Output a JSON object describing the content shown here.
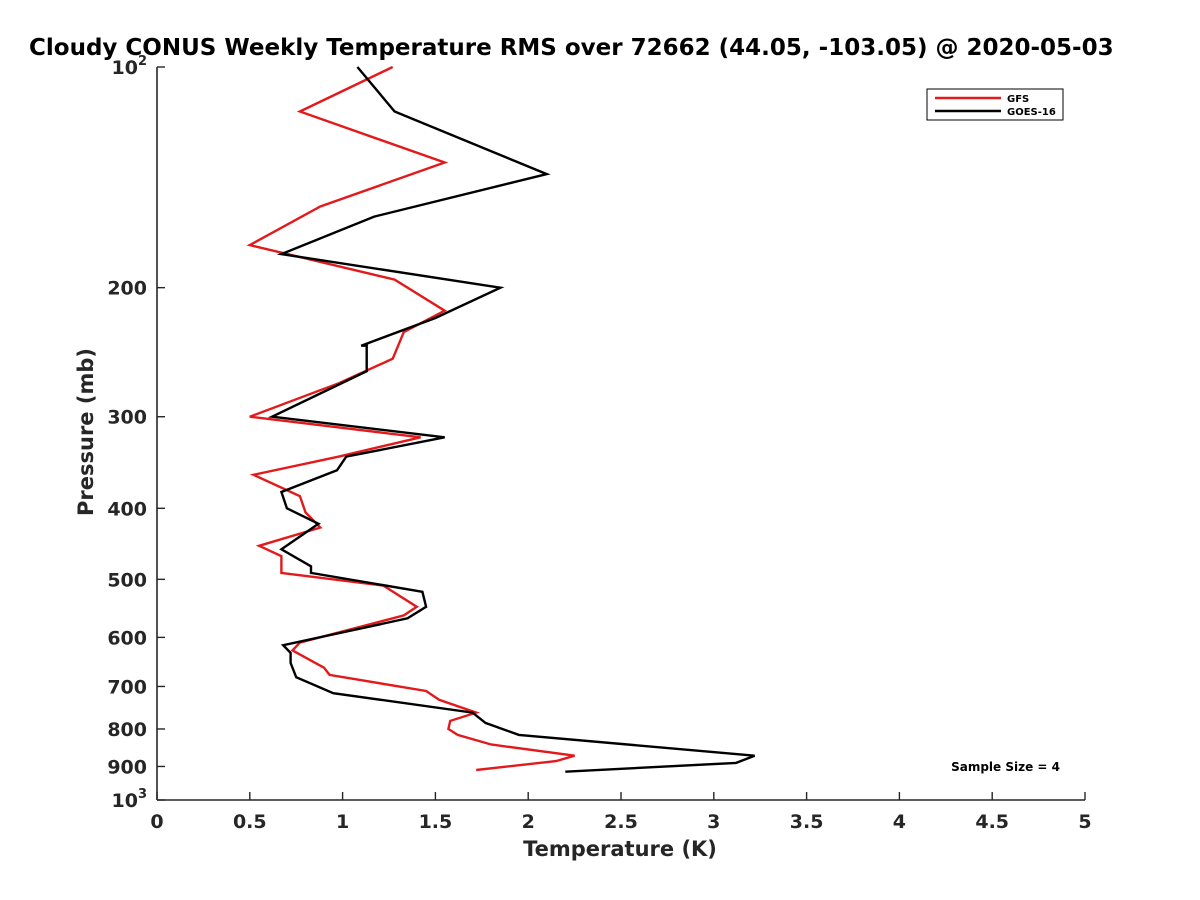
{
  "chart_data": {
    "type": "line",
    "title": "Cloudy CONUS Weekly Temperature RMS over 72662 (44.05, -103.05) @ 2020-05-03",
    "xlabel": "Temperature (K)",
    "ylabel": "Pressure (mb)",
    "xlim": [
      0,
      5
    ],
    "ylim": [
      100,
      1000
    ],
    "y_scale": "log",
    "y_reversed": true,
    "grid": false,
    "legend_position": "top-right",
    "x_ticks": [
      "0",
      "0.5",
      "1",
      "1.5",
      "2",
      "2.5",
      "3",
      "3.5",
      "4",
      "4.5",
      "5"
    ],
    "y_ticks": [
      {
        "value": 100,
        "base": "10",
        "exp": "2"
      },
      {
        "value": 200,
        "label": "200"
      },
      {
        "value": 300,
        "label": "300"
      },
      {
        "value": 400,
        "label": "400"
      },
      {
        "value": 500,
        "label": "500"
      },
      {
        "value": 600,
        "label": "600"
      },
      {
        "value": 700,
        "label": "700"
      },
      {
        "value": 800,
        "label": "800"
      },
      {
        "value": 900,
        "label": "900"
      },
      {
        "value": 1000,
        "base": "10",
        "exp": "3"
      }
    ],
    "annotation": "Sample Size = 4",
    "series": [
      {
        "name": "GFS",
        "color": "#e31a1c",
        "points": [
          [
            1.27,
            100
          ],
          [
            0.77,
            115
          ],
          [
            1.55,
            135
          ],
          [
            0.88,
            155
          ],
          [
            0.5,
            175
          ],
          [
            1.28,
            195
          ],
          [
            1.55,
            215
          ],
          [
            1.33,
            230
          ],
          [
            1.27,
            250
          ],
          [
            0.98,
            270
          ],
          [
            0.5,
            300
          ],
          [
            1.42,
            320
          ],
          [
            0.98,
            340
          ],
          [
            0.52,
            360
          ],
          [
            0.77,
            385
          ],
          [
            0.8,
            405
          ],
          [
            0.88,
            425
          ],
          [
            0.55,
            450
          ],
          [
            0.67,
            465
          ],
          [
            0.67,
            490
          ],
          [
            1.22,
            510
          ],
          [
            1.4,
            545
          ],
          [
            1.33,
            560
          ],
          [
            0.77,
            610
          ],
          [
            0.73,
            625
          ],
          [
            0.9,
            660
          ],
          [
            0.93,
            675
          ],
          [
            1.45,
            710
          ],
          [
            1.52,
            730
          ],
          [
            1.72,
            760
          ],
          [
            1.58,
            780
          ],
          [
            1.57,
            800
          ],
          [
            1.62,
            815
          ],
          [
            1.8,
            840
          ],
          [
            2.25,
            870
          ],
          [
            2.15,
            885
          ],
          [
            1.72,
            910
          ]
        ]
      },
      {
        "name": "GOES-16",
        "color": "#000000",
        "points": [
          [
            1.08,
            100
          ],
          [
            1.28,
            115
          ],
          [
            2.1,
            140
          ],
          [
            1.17,
            160
          ],
          [
            0.67,
            180
          ],
          [
            1.85,
            200
          ],
          [
            1.5,
            220
          ],
          [
            1.1,
            240
          ],
          [
            1.13,
            240
          ],
          [
            1.13,
            260
          ],
          [
            0.93,
            275
          ],
          [
            0.62,
            300
          ],
          [
            1.55,
            320
          ],
          [
            1.02,
            340
          ],
          [
            0.97,
            355
          ],
          [
            0.67,
            380
          ],
          [
            0.7,
            400
          ],
          [
            0.87,
            420
          ],
          [
            0.67,
            455
          ],
          [
            0.83,
            480
          ],
          [
            0.83,
            490
          ],
          [
            1.43,
            520
          ],
          [
            1.45,
            545
          ],
          [
            1.35,
            565
          ],
          [
            0.68,
            615
          ],
          [
            0.72,
            630
          ],
          [
            0.72,
            650
          ],
          [
            0.75,
            680
          ],
          [
            0.95,
            715
          ],
          [
            1.7,
            760
          ],
          [
            1.77,
            785
          ],
          [
            1.95,
            815
          ],
          [
            3.22,
            870
          ],
          [
            3.12,
            890
          ],
          [
            2.2,
            915
          ]
        ]
      }
    ]
  }
}
